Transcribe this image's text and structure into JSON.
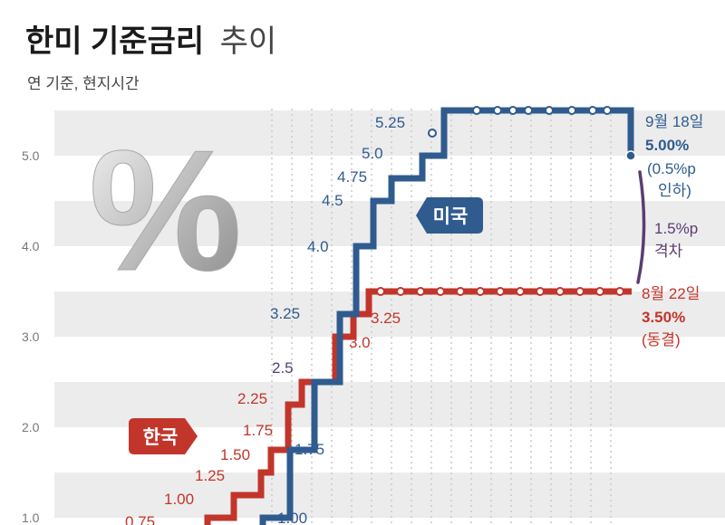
{
  "title_bold": "한미 기준금리",
  "title_light": "추이",
  "subtitle": "연 기준, 현지시간",
  "colors": {
    "us": "#2f5b8f",
    "korea": "#c2352b",
    "gap": "#5a3c72",
    "band": "#ececec"
  },
  "chart_data": {
    "type": "line",
    "ylim": [
      0.9,
      5.55
    ],
    "yticks": [
      "1.0",
      "2.0",
      "3.0",
      "4.0",
      "5.0"
    ],
    "ytick_values": [
      1.0,
      2.0,
      3.0,
      4.0,
      5.0
    ],
    "series": [
      {
        "name": "미국",
        "values": [
          1.0,
          1.75,
          2.5,
          3.25,
          4.0,
          4.5,
          4.75,
          5.0,
          5.25,
          5.5,
          5.5,
          5.5,
          5.5,
          5.5,
          5.5,
          5.5,
          5.5,
          5.5,
          5.5,
          5.5,
          5.5,
          5.0
        ],
        "step_labels": [
          {
            "text": "1.00",
            "value": 1.0
          },
          {
            "text": "1.75",
            "value": 1.75
          },
          {
            "text": "2.5",
            "value": 2.5
          },
          {
            "text": "3.25",
            "value": 3.25
          },
          {
            "text": "4.0",
            "value": 4.0
          },
          {
            "text": "4.5",
            "value": 4.5
          },
          {
            "text": "4.75",
            "value": 4.75
          },
          {
            "text": "5.0",
            "value": 5.0
          },
          {
            "text": "5.25",
            "value": 5.25
          }
        ]
      },
      {
        "name": "한국",
        "values": [
          0.75,
          1.0,
          1.25,
          1.5,
          1.75,
          2.25,
          2.5,
          3.0,
          3.25,
          3.5,
          3.5,
          3.5,
          3.5,
          3.5,
          3.5,
          3.5,
          3.5,
          3.5,
          3.5,
          3.5,
          3.5,
          3.5,
          3.5,
          3.5
        ],
        "step_labels": [
          {
            "text": "0.75",
            "value": 0.75
          },
          {
            "text": "1.00",
            "value": 1.0
          },
          {
            "text": "1.25",
            "value": 1.25
          },
          {
            "text": "1.50",
            "value": 1.5
          },
          {
            "text": "1.75",
            "value": 1.75
          },
          {
            "text": "2.25",
            "value": 2.25
          },
          {
            "text": "3.0",
            "value": 3.0
          },
          {
            "text": "3.25",
            "value": 3.25
          }
        ]
      }
    ],
    "annotations": {
      "us_date": "9월 18일",
      "us_rate": "5.00%",
      "us_change_1": "(0.5%p",
      "us_change_2": "인하)",
      "gap_1": "1.5%p",
      "gap_2": "격차",
      "kr_date": "8월 22일",
      "kr_rate": "3.50%",
      "kr_change": "(동결)"
    },
    "badges": {
      "us": "미국",
      "korea": "한국"
    },
    "decoration": "%"
  }
}
